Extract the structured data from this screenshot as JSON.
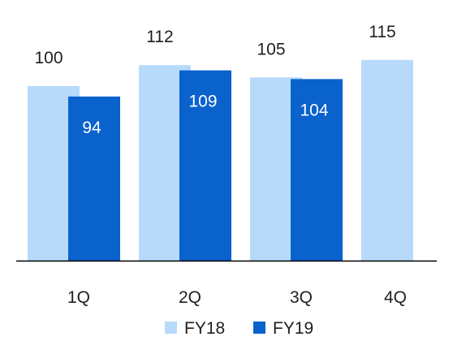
{
  "chart_data": {
    "type": "bar",
    "categories": [
      "1Q",
      "2Q",
      "3Q",
      "4Q"
    ],
    "series": [
      {
        "name": "FY18",
        "values": [
          100,
          112,
          105,
          115
        ],
        "color": "#b7dafb"
      },
      {
        "name": "FY19",
        "values": [
          94,
          109,
          104,
          null
        ],
        "color": "#0a62cc"
      }
    ],
    "data_labels": {
      "FY18": [
        "100",
        "112",
        "105",
        "115"
      ],
      "FY19": [
        "94",
        "109",
        "104",
        ""
      ]
    },
    "ylim": [
      0,
      120
    ],
    "grid": false,
    "legend_position": "bottom",
    "colors": {
      "axis": "#000000",
      "label_dark": "#1f1f1f",
      "label_light": "#ffffff"
    }
  }
}
